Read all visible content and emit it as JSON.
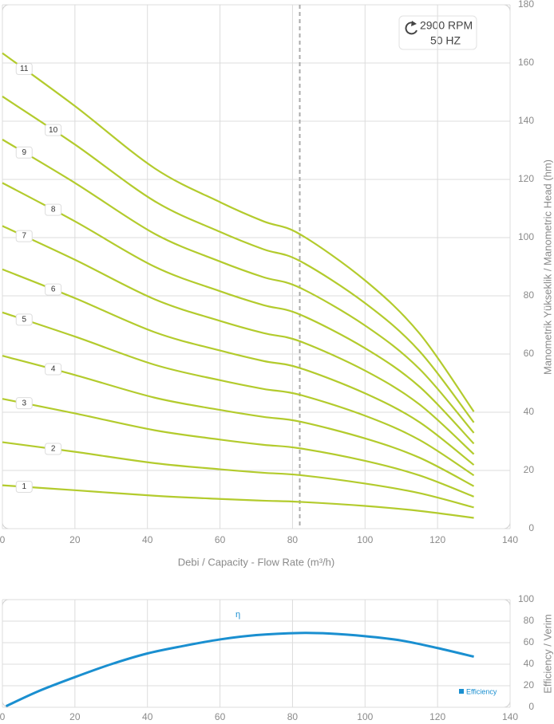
{
  "chart_data": [
    {
      "type": "line",
      "x_label": "Debi / Capacity  - Flow Rate (m³/h)",
      "y_label": "Manometrik Yükseklik  / Manometric Head (hm)",
      "annotations": [
        "2900 RPM",
        "50 HZ"
      ],
      "reference_x": 82,
      "x": [
        0,
        20,
        42,
        60,
        72,
        82,
        100,
        115,
        130
      ],
      "series": [
        {
          "name": "1",
          "color": "#b3cb2d",
          "values": [
            14.9,
            13.2,
            11.3,
            10.2,
            9.6,
            9.2,
            7.8,
            6.1,
            3.7
          ]
        },
        {
          "name": "2",
          "color": "#b3cb2d",
          "values": [
            29.7,
            26.4,
            22.5,
            20.4,
            19.2,
            18.4,
            15.5,
            12.2,
            7.3
          ]
        },
        {
          "name": "3",
          "color": "#b3cb2d",
          "values": [
            44.6,
            39.6,
            33.8,
            30.6,
            28.8,
            27.6,
            23.3,
            18.3,
            11.0
          ]
        },
        {
          "name": "4",
          "color": "#b3cb2d",
          "values": [
            59.4,
            52.8,
            45,
            40.8,
            38.4,
            36.8,
            31,
            24.4,
            14.6
          ]
        },
        {
          "name": "5",
          "color": "#b3cb2d",
          "values": [
            74.3,
            66,
            56.3,
            51,
            48,
            46,
            38.8,
            30.5,
            18.3
          ]
        },
        {
          "name": "6",
          "color": "#b3cb2d",
          "values": [
            89.1,
            79.2,
            67.5,
            61.2,
            57.6,
            55.2,
            46.5,
            36.6,
            21.9
          ]
        },
        {
          "name": "7",
          "color": "#b3cb2d",
          "values": [
            104,
            92.4,
            78.8,
            71.4,
            67.2,
            64.4,
            54.3,
            42.7,
            25.6
          ]
        },
        {
          "name": "8",
          "color": "#b3cb2d",
          "values": [
            118.8,
            105.6,
            90,
            81.6,
            76.8,
            73.6,
            62,
            48.8,
            29.2
          ]
        },
        {
          "name": "9",
          "color": "#b3cb2d",
          "values": [
            133.7,
            118.8,
            101.3,
            91.8,
            86.4,
            82.8,
            69.8,
            54.9,
            32.9
          ]
        },
        {
          "name": "10",
          "color": "#b3cb2d",
          "values": [
            148.5,
            132,
            112.5,
            102,
            96,
            92,
            77.5,
            61,
            36.5
          ]
        },
        {
          "name": "11",
          "color": "#b3cb2d",
          "values": [
            163.4,
            145.2,
            123.8,
            112.2,
            105.6,
            101.2,
            85.3,
            67.1,
            40.2
          ]
        }
      ],
      "xlim": [
        0,
        140
      ],
      "xticks": [
        0,
        20,
        40,
        60,
        80,
        100,
        120,
        140
      ],
      "ylim": [
        0,
        180
      ],
      "yticks": [
        0,
        20,
        40,
        60,
        80,
        100,
        120,
        140,
        160,
        180
      ],
      "grid": true
    },
    {
      "type": "line",
      "y_label": "Efficiency / Verim",
      "annotations": [
        "η"
      ],
      "legend": "bottom-right",
      "x": [
        1,
        10,
        20,
        30,
        40,
        50,
        60,
        70,
        82,
        90,
        100,
        110,
        120,
        130
      ],
      "series": [
        {
          "name": "Efficiency",
          "color": "#1a8fd0",
          "values": [
            1,
            15,
            28,
            40,
            50,
            57,
            63,
            67,
            69,
            68.5,
            66,
            62,
            55,
            47
          ]
        }
      ],
      "xlim": [
        0,
        140
      ],
      "xticks": [
        0,
        20,
        40,
        60,
        80,
        100,
        120,
        140
      ],
      "ylim": [
        0,
        100
      ],
      "yticks": [
        0,
        20,
        40,
        60,
        80,
        100
      ],
      "grid": true
    }
  ]
}
